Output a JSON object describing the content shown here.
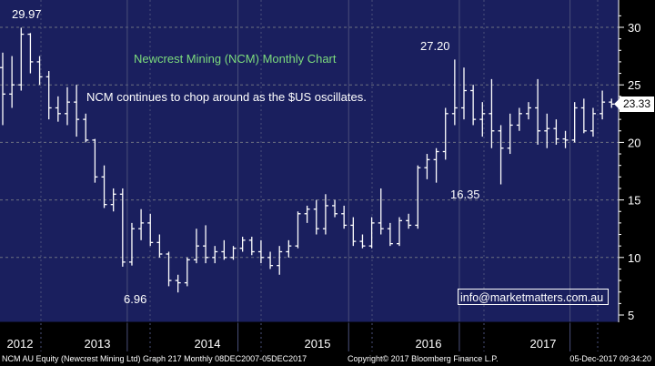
{
  "chart_data": {
    "type": "ohlc",
    "title": "Newcrest Mining (NCM) Monthly Chart",
    "subtitle": "NCM continues to chop around as the $US oscillates.",
    "ylim": [
      5,
      31
    ],
    "yticks": [
      5,
      10,
      15,
      20,
      25,
      30
    ],
    "xticks": [
      "2012",
      "2013",
      "2014",
      "2015",
      "2016",
      "2017"
    ],
    "annotations": [
      {
        "text": "29.97",
        "value": 29.97
      },
      {
        "text": "6.96",
        "value": 6.96
      },
      {
        "text": "27.20",
        "value": 27.2
      },
      {
        "text": "16.35",
        "value": 16.35
      }
    ],
    "last_price": "23.33",
    "watermark": "info@marketmatters.com.au",
    "ohlc": [
      [
        26.5,
        27.8,
        21.5,
        24.2
      ],
      [
        24.2,
        27.5,
        23.0,
        25.0
      ],
      [
        25.0,
        29.97,
        24.5,
        29.4
      ],
      [
        29.4,
        29.5,
        26.0,
        27.0
      ],
      [
        27.0,
        27.5,
        25.0,
        25.7
      ],
      [
        25.7,
        26.2,
        22.0,
        23.0
      ],
      [
        23.0,
        24.0,
        21.8,
        22.5
      ],
      [
        22.5,
        24.8,
        21.5,
        23.5
      ],
      [
        23.5,
        25.0,
        20.5,
        22.0
      ],
      [
        22.0,
        22.5,
        20.0,
        20.2
      ],
      [
        20.2,
        20.3,
        16.5,
        17.0
      ],
      [
        17.0,
        18.0,
        14.3,
        14.6
      ],
      [
        14.6,
        16.0,
        14.0,
        15.5
      ],
      [
        15.5,
        16.0,
        9.2,
        9.6
      ],
      [
        9.6,
        13.0,
        9.3,
        12.5
      ],
      [
        12.5,
        14.2,
        11.5,
        13.0
      ],
      [
        13.0,
        13.8,
        11.0,
        11.3
      ],
      [
        11.3,
        12.0,
        10.0,
        10.3
      ],
      [
        10.3,
        10.5,
        7.5,
        8.0
      ],
      [
        8.0,
        8.5,
        6.96,
        7.8
      ],
      [
        7.8,
        10.0,
        7.5,
        9.8
      ],
      [
        9.8,
        12.5,
        9.5,
        11.0
      ],
      [
        11.0,
        12.8,
        9.5,
        10.0
      ],
      [
        10.0,
        11.0,
        9.5,
        10.5
      ],
      [
        10.5,
        11.5,
        9.8,
        10.0
      ],
      [
        10.0,
        11.0,
        9.8,
        10.8
      ],
      [
        10.8,
        11.8,
        10.5,
        11.5
      ],
      [
        11.5,
        11.8,
        10.2,
        10.5
      ],
      [
        10.5,
        11.5,
        9.5,
        10.0
      ],
      [
        10.0,
        10.5,
        9.0,
        9.3
      ],
      [
        9.3,
        11.0,
        8.5,
        10.5
      ],
      [
        10.5,
        11.5,
        10.0,
        11.0
      ],
      [
        11.0,
        14.0,
        10.8,
        13.8
      ],
      [
        13.8,
        14.5,
        13.0,
        14.2
      ],
      [
        14.2,
        15.0,
        12.0,
        12.5
      ],
      [
        12.5,
        15.5,
        12.0,
        14.5
      ],
      [
        14.5,
        15.0,
        13.5,
        13.8
      ],
      [
        13.8,
        14.5,
        12.5,
        12.8
      ],
      [
        12.8,
        13.5,
        11.0,
        11.4
      ],
      [
        11.4,
        12.0,
        10.8,
        11.0
      ],
      [
        11.0,
        13.5,
        10.8,
        13.0
      ],
      [
        13.0,
        16.0,
        12.0,
        12.5
      ],
      [
        12.5,
        13.0,
        11.0,
        11.2
      ],
      [
        11.2,
        13.5,
        11.0,
        13.2
      ],
      [
        13.2,
        13.8,
        12.5,
        12.8
      ],
      [
        12.8,
        18.0,
        12.5,
        17.8
      ],
      [
        17.8,
        19.0,
        16.8,
        18.5
      ],
      [
        18.5,
        19.5,
        16.5,
        19.2
      ],
      [
        19.2,
        23.0,
        18.5,
        22.5
      ],
      [
        22.5,
        27.2,
        21.5,
        23.0
      ],
      [
        23.0,
        26.5,
        22.0,
        24.5
      ],
      [
        24.5,
        25.0,
        21.5,
        22.0
      ],
      [
        22.0,
        23.5,
        20.5,
        22.5
      ],
      [
        22.5,
        25.5,
        19.5,
        21.0
      ],
      [
        21.0,
        21.5,
        16.35,
        19.5
      ],
      [
        19.5,
        22.5,
        19.0,
        21.5
      ],
      [
        21.5,
        23.0,
        21.0,
        22.5
      ],
      [
        22.5,
        23.5,
        22.0,
        23.0
      ],
      [
        23.0,
        25.5,
        19.8,
        21.0
      ],
      [
        21.0,
        22.5,
        19.5,
        21.2
      ],
      [
        21.2,
        22.0,
        19.8,
        20.3
      ],
      [
        20.3,
        21.0,
        19.5,
        20.2
      ],
      [
        20.2,
        23.5,
        20.0,
        23.0
      ],
      [
        23.0,
        23.8,
        20.8,
        21.0
      ],
      [
        21.0,
        23.0,
        20.5,
        22.5
      ],
      [
        22.5,
        24.5,
        22.0,
        23.5
      ],
      [
        23.5,
        23.8,
        23.0,
        23.33
      ]
    ],
    "footer": {
      "left": "NCM AU Equity (Newcrest Mining Ltd) Graph 217  Monthly 08DEC2007-05DEC2017",
      "mid": "Copyright© 2017 Bloomberg Finance L.P.",
      "right": "05-Dec-2017 09:34:20"
    },
    "colors": {
      "background": "#1a1f5e",
      "bars": "#ffffff",
      "title": "#7ddc7d",
      "dashed_grid": "#6c7080",
      "year_divider": "#4a4f7a"
    }
  }
}
